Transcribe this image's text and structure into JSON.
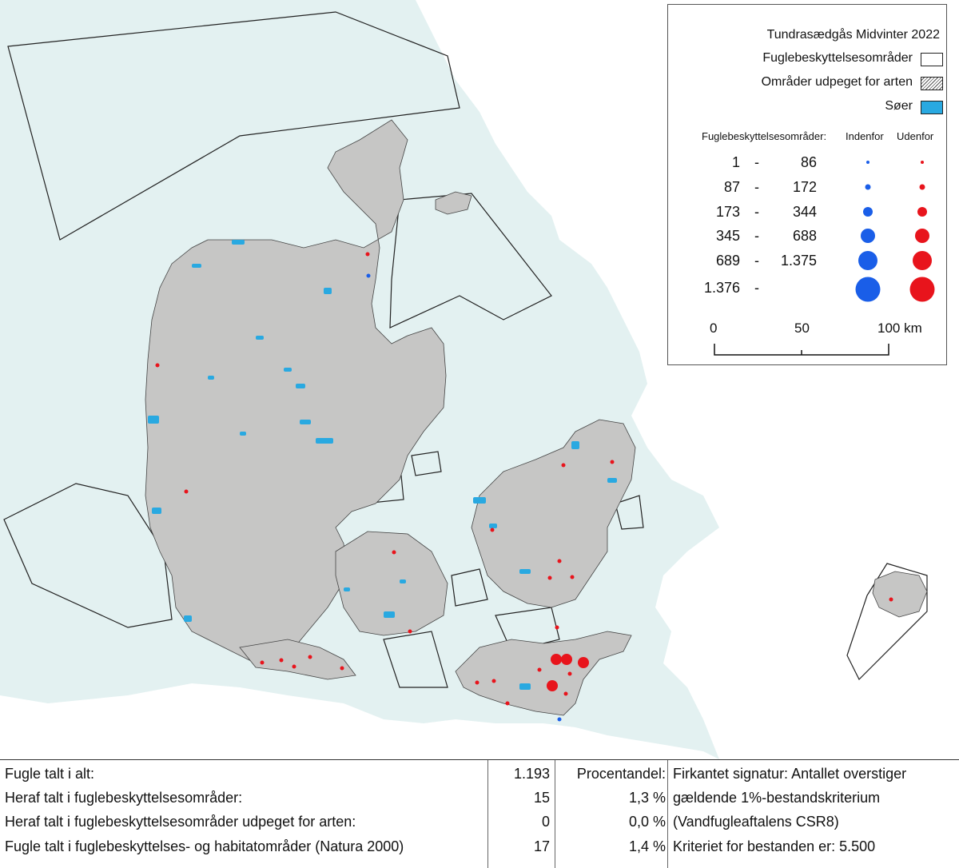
{
  "legend": {
    "title": "Tundrasædgås Midvinter 2022",
    "item_protected": "Fuglebeskyttelsesområder",
    "item_designated": "Områder udpeget for arten",
    "item_lakes": "Søer",
    "header_left": "Fuglebeskyttelsesområder:",
    "header_inside": "Indenfor",
    "header_outside": "Udenfor",
    "classes": [
      {
        "from": "1",
        "dash": "-",
        "to": "86"
      },
      {
        "from": "87",
        "dash": "-",
        "to": "172"
      },
      {
        "from": "173",
        "dash": "-",
        "to": "344"
      },
      {
        "from": "345",
        "dash": "-",
        "to": "688"
      },
      {
        "from": "689",
        "dash": "-",
        "to": "1.375"
      },
      {
        "from": "1.376",
        "dash": "-",
        "to": ""
      }
    ],
    "scale": {
      "t0": "0",
      "t1": "50",
      "t2": "100 km"
    }
  },
  "colors": {
    "sea": "#e3f1f1",
    "land": "#c6c6c5",
    "foreign_land": "#ffffff",
    "lakes": "#29a9e1",
    "inside_dot": "#1a5ee8",
    "outside_dot": "#e8141c"
  },
  "stats": {
    "rows": [
      {
        "label": "Fugle talt i alt:",
        "count": "1.193",
        "pct": "Procentandel:",
        "note": "Firkantet signatur: Antallet overstiger"
      },
      {
        "label": "Heraf talt i fuglebeskyttelsesområder:",
        "count": "15",
        "pct": "1,3 %",
        "note": "gældende 1%-bestandskriterium"
      },
      {
        "label": "Heraf talt i fuglebeskyttelsesområder udpeget for arten:",
        "count": "0",
        "pct": "0,0 %",
        "note": "(Vandfugleaftalens CSR8)"
      },
      {
        "label": "Fugle talt i fuglebeskyttelses- og habitatområder (Natura 2000)",
        "count": "17",
        "pct": "1,4 %",
        "note": "Kriteriet for bestanden er: 5.500"
      }
    ]
  }
}
